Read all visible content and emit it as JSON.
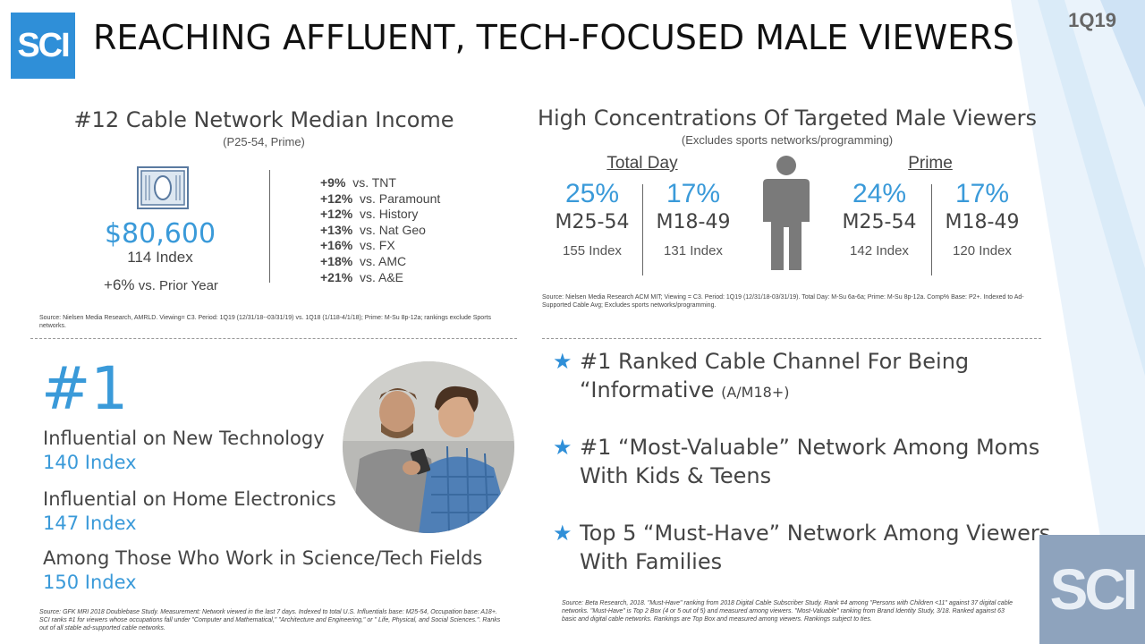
{
  "header": {
    "logo_text": "SCI",
    "title": "REACHING AFFLUENT, TECH-FOCUSED MALE VIEWERS",
    "quarter": "1Q19"
  },
  "income": {
    "heading": "#12 Cable Network Median Income",
    "subheading": "(P25-54, Prime)",
    "value": "$80,600",
    "index": "114 Index",
    "prior_change": "+6%",
    "prior_label": "vs. Prior Year",
    "comparisons": [
      {
        "pct": "+9%",
        "label": "vs. TNT"
      },
      {
        "pct": "+12%",
        "label": "vs. Paramount"
      },
      {
        "pct": "+12%",
        "label": "vs. History"
      },
      {
        "pct": "+13%",
        "label": "vs. Nat Geo"
      },
      {
        "pct": "+16%",
        "label": "vs. FX"
      },
      {
        "pct": "+18%",
        "label": "vs. AMC"
      },
      {
        "pct": "+21%",
        "label": "vs. A&E"
      }
    ],
    "source": "Source: Nielsen Media Research, AMRLD. Viewing= C3. Period: 1Q19 (12/31/18--03/31/19) vs. 1Q18 (1/118-4/1/18); Prime: M-Su 8p-12a; rankings exclude Sports networks."
  },
  "male_viewers": {
    "heading": "High Concentrations Of Targeted Male Viewers",
    "subheading": "(Excludes sports networks/programming)",
    "groups": [
      {
        "label": "Total Day",
        "items": [
          {
            "pct": "25%",
            "demo": "M25-54",
            "index": "155 Index"
          },
          {
            "pct": "17%",
            "demo": "M18-49",
            "index": "131 Index"
          }
        ]
      },
      {
        "label": "Prime",
        "items": [
          {
            "pct": "24%",
            "demo": "M25-54",
            "index": "142 Index"
          },
          {
            "pct": "17%",
            "demo": "M18-49",
            "index": "120 Index"
          }
        ]
      }
    ],
    "source": "Source: Nielsen Media Research ACM MIT; Viewing = C3. Period: 1Q19 (12/31/18-03/31/19). Total Day: M-Su 6a-6a; Prime: M-Su 8p-12a. Comp% Base: P2+. Indexed to Ad-Supported Cable Avg; Excludes sports networks/programming."
  },
  "influential": {
    "rank": "#1",
    "items": [
      {
        "label": "Influential on New Technology",
        "index": "140 Index"
      },
      {
        "label": "Influential on Home Electronics",
        "index": "147 Index"
      },
      {
        "label": "Among Those Who Work in Science/Tech Fields",
        "index": "150 Index"
      }
    ],
    "source": "Source: GFK MRI 2018 Doublebase Study. Measurement: Network viewed in the last 7 days. Indexed to total U.S. Influentials base: M25-54, Occupation base: A18+. SCI ranks #1 for viewers whose occupations fall under \"Computer and Mathematical,\" \"Architecture and Engineering,\" or \" Life, Physical, and Social Sciences.\". Ranks out of all stable ad-supported cable networks."
  },
  "rankings": {
    "bullets": [
      {
        "line1": "#1 Ranked Cable Channel For Being",
        "line2": "“Informative",
        "note": "(A/M18+)"
      },
      {
        "line1": "#1 “Most-Valuable” Network Among Moms",
        "line2": "With Kids & Teens",
        "note": ""
      },
      {
        "line1": "Top 5 “Must-Have” Network Among Viewers",
        "line2": "With Families",
        "note": ""
      }
    ],
    "source": "Source: Beta Research, 2018. \"Must-Have\" ranking from 2018 Digital Cable Subscriber Study. Rank #4 among \"Persons with Children <11\" against 37 digital cable networks. \"Must-Have\" is Top 2 Box (4 or 5 out of 5) and measured among viewers. \"Most-Valuable\" ranking from Brand Identity Study, 3/18. Ranked against 63 basic and digital cable networks. Rankings are Top Box and measured among viewers. Rankings subject to ties."
  },
  "footer_logo_text": "SCI",
  "colors": {
    "accent": "#3a9ad9",
    "logo_bg": "#2f8fd8"
  }
}
